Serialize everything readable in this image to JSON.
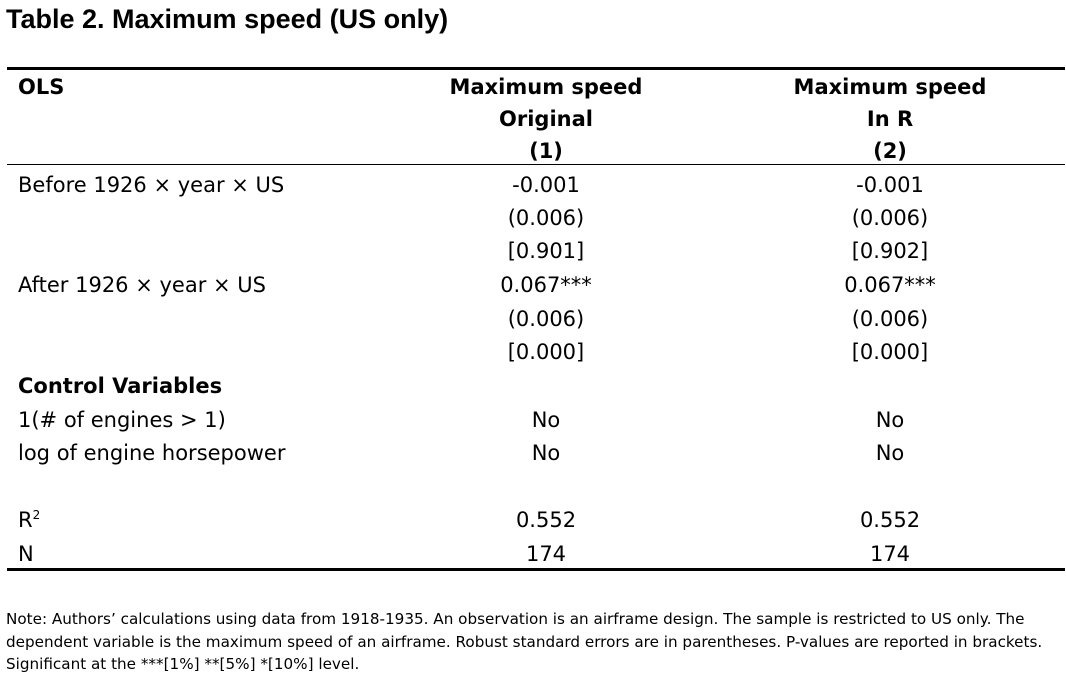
{
  "title": "Table 2. Maximum speed (US only)",
  "header": {
    "corner": "OLS",
    "columns": [
      {
        "line1": "Maximum speed",
        "line2": "Original",
        "number": "(1)"
      },
      {
        "line1": "Maximum speed",
        "line2": "In R",
        "number": "(2)"
      }
    ]
  },
  "rows": {
    "before": {
      "label": "Before 1926 × year × US",
      "col1": {
        "coef": "-0.001",
        "se": "(0.006)",
        "p": "[0.901]"
      },
      "col2": {
        "coef": "-0.001",
        "se": "(0.006)",
        "p": "[0.902]"
      }
    },
    "after": {
      "label": "After 1926 × year × US",
      "col1": {
        "coef": "0.067***",
        "se": "(0.006)",
        "p": "[0.000]"
      },
      "col2": {
        "coef": "0.067***",
        "se": "(0.006)",
        "p": "[0.000]"
      }
    },
    "controls_heading": "Control Variables",
    "engines": {
      "label": "1(# of engines > 1)",
      "col1": "No",
      "col2": "No"
    },
    "horsepower": {
      "label": "log of engine horsepower",
      "col1": "No",
      "col2": "No"
    },
    "r2": {
      "label": "R",
      "label_sup": "2",
      "col1": "0.552",
      "col2": "0.552"
    },
    "n": {
      "label": "N",
      "col1": "174",
      "col2": "174"
    }
  },
  "note": {
    "line1": "Note: Authors’ calculations using data from 1918-1935. An observation is an airframe design. The sample is restricted to US only. The",
    "line2": "dependent variable is the maximum speed of an airframe. Robust standard errors are in parentheses. P-values are reported in brackets.",
    "line3": "Significant at the ***[1%] **[5%] *[10%] level."
  }
}
